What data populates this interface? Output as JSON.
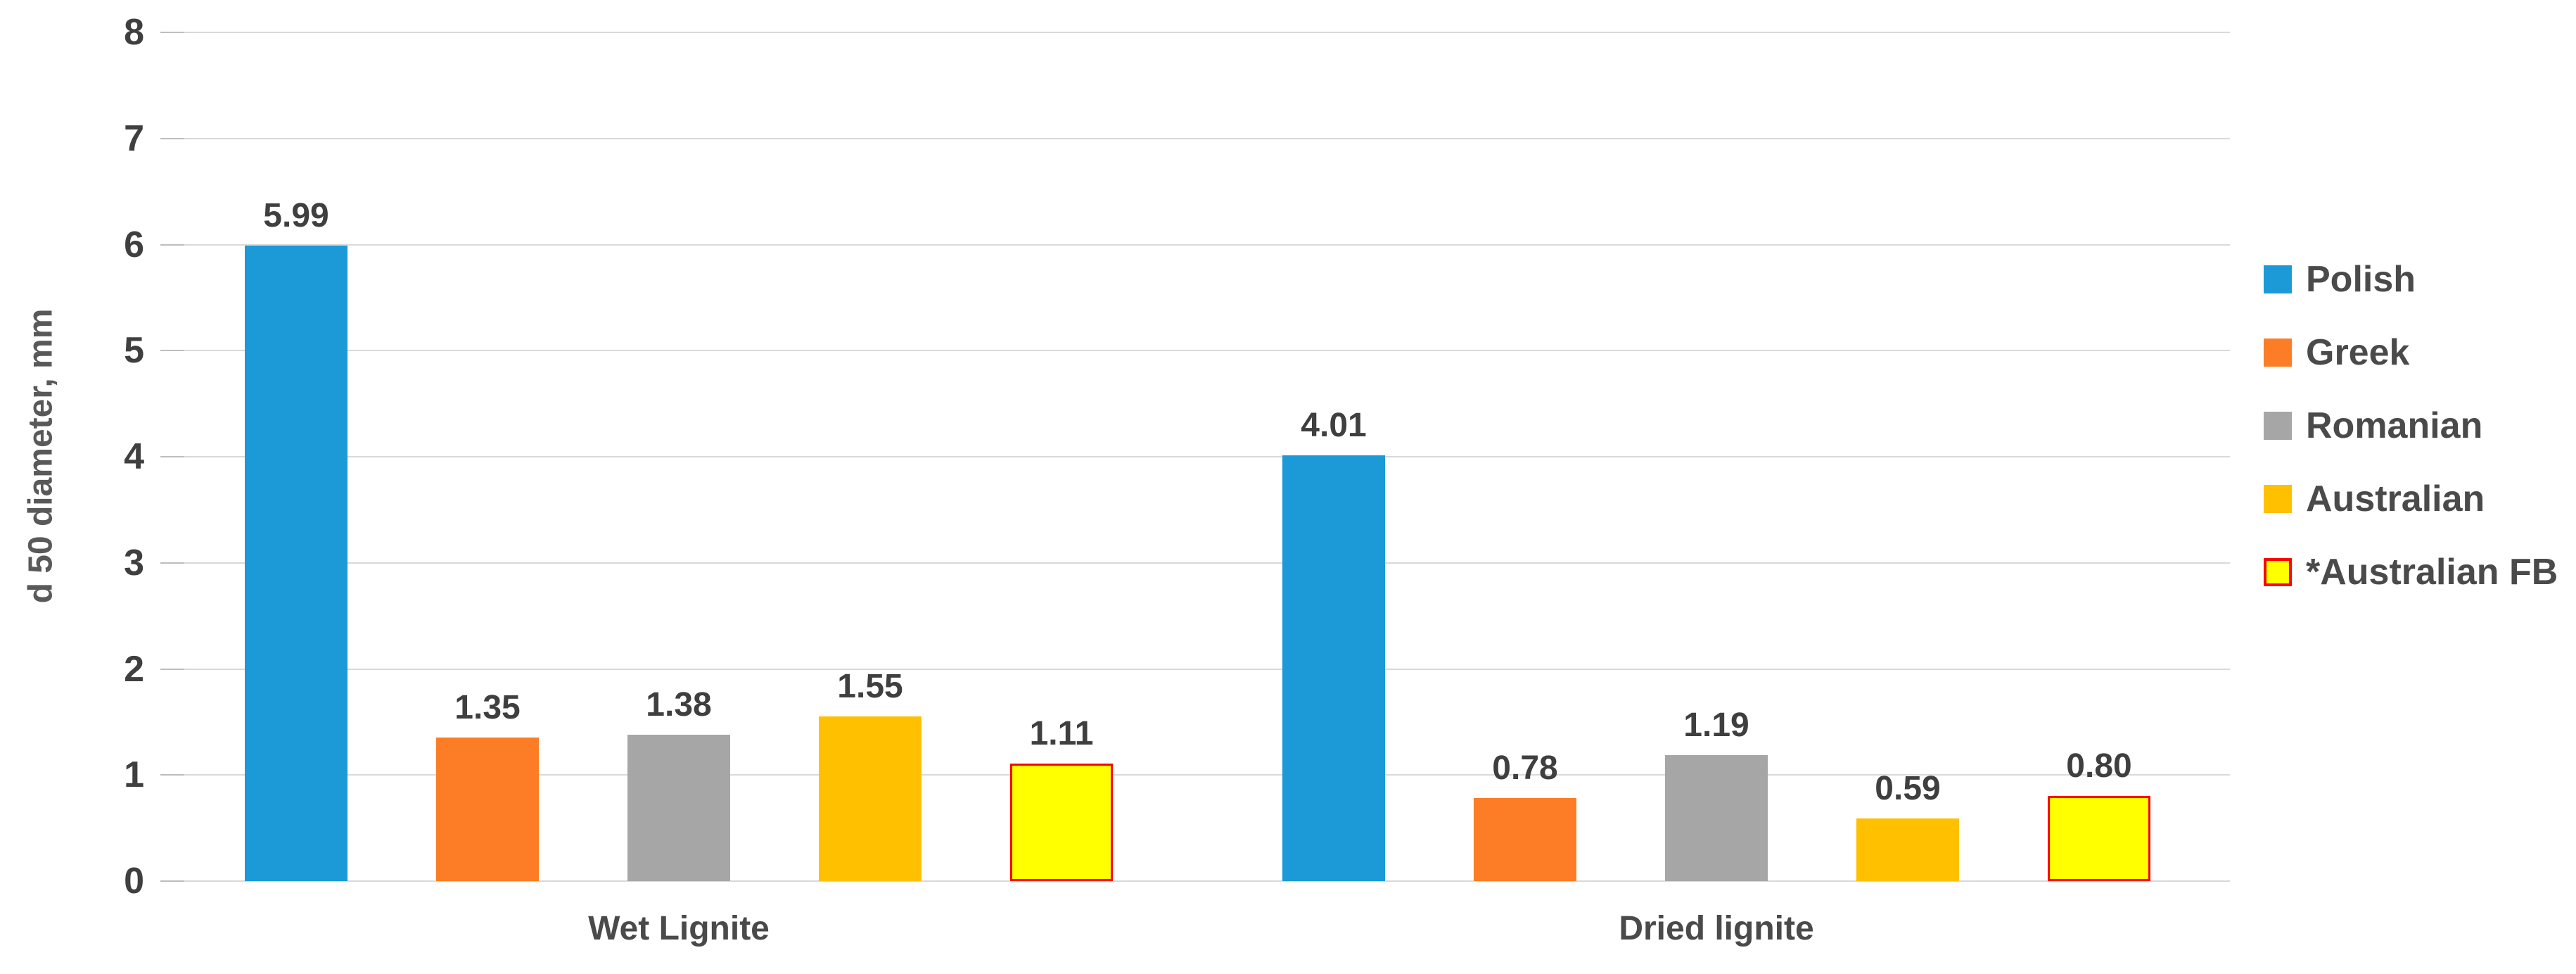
{
  "chart_data": {
    "type": "bar",
    "title": "",
    "xlabel": "",
    "ylabel": "d 50 diameter, mm",
    "categories": [
      "Wet Lignite",
      "Dried lignite"
    ],
    "series": [
      {
        "name": "Polish",
        "values": [
          5.99,
          4.01
        ],
        "labels": [
          "5.99",
          "4.01"
        ],
        "color": "#1B9AD7"
      },
      {
        "name": "Greek",
        "values": [
          1.35,
          0.78
        ],
        "labels": [
          "1.35",
          "0.78"
        ],
        "color": "#FC7D26"
      },
      {
        "name": "Romanian",
        "values": [
          1.38,
          1.19
        ],
        "labels": [
          "1.38",
          "1.19"
        ],
        "color": "#A6A6A6"
      },
      {
        "name": "Australian",
        "values": [
          1.55,
          0.59
        ],
        "labels": [
          "1.55",
          "0.59"
        ],
        "color": "#FFC000"
      },
      {
        "name": "*Australian FB",
        "values": [
          1.11,
          0.8
        ],
        "labels": [
          "1.11",
          "0.80"
        ],
        "color": "#FFFF00",
        "border_color": "#FF0000"
      }
    ],
    "ylim": [
      0,
      8
    ],
    "yticks": [
      "0",
      "1",
      "2",
      "3",
      "4",
      "5",
      "6",
      "7",
      "8"
    ],
    "grid": true,
    "legend_position": "right",
    "colors": {
      "gridline": "#D9D9D9",
      "tick_mark": "#BDBDBD",
      "axis_text": "#3F3F3F",
      "data_label_text": "#3F3F3F",
      "category_text": "#4A4A4A",
      "legend_text": "#4A4A4A",
      "y_title_text": "#595959",
      "background": "#FFFFFF"
    }
  }
}
